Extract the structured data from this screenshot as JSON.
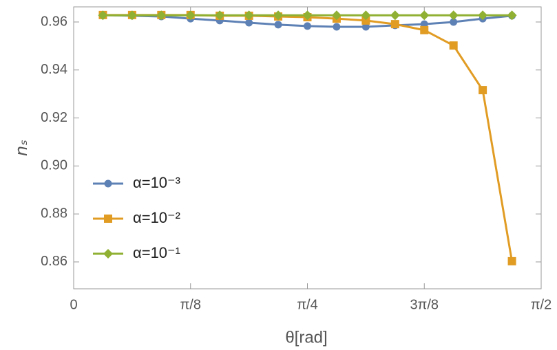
{
  "chart_data": {
    "type": "line",
    "xlabel": "θ[rad]",
    "ylabel": "nₛ",
    "x": [
      0.098175,
      0.19635,
      0.294524,
      0.392699,
      0.490874,
      0.589049,
      0.687223,
      0.785398,
      0.883573,
      0.981748,
      1.079922,
      1.178097,
      1.276272,
      1.374447,
      1.472622
    ],
    "series": [
      {
        "name": "α=10⁻³",
        "color": "#5e81b5",
        "marker": "circle",
        "values": [
          0.9629,
          0.9626,
          0.9623,
          0.9614,
          0.9606,
          0.9597,
          0.9589,
          0.9583,
          0.958,
          0.958,
          0.9586,
          0.9591,
          0.96,
          0.9614,
          0.9626
        ]
      },
      {
        "name": "α=10⁻²",
        "color": "#e19c24",
        "marker": "square",
        "values": [
          0.9629,
          0.9629,
          0.9629,
          0.9629,
          0.9626,
          0.9626,
          0.9623,
          0.962,
          0.9614,
          0.9606,
          0.9591,
          0.9566,
          0.9502,
          0.9316,
          0.8603
        ]
      },
      {
        "name": "α=10⁻¹",
        "color": "#8fb032",
        "marker": "diamond",
        "values": [
          0.9628,
          0.9628,
          0.9628,
          0.9628,
          0.9628,
          0.9628,
          0.9628,
          0.9628,
          0.9628,
          0.9628,
          0.9628,
          0.9628,
          0.9628,
          0.9628,
          0.9628
        ]
      }
    ],
    "xlim": [
      0,
      1.570796
    ],
    "xticks": [
      0,
      {
        "value": 0.392699,
        "label": "π/8"
      },
      {
        "value": 0.785398,
        "label": "π/4"
      },
      {
        "value": 1.178097,
        "label": "3π/8"
      },
      {
        "value": 1.570796,
        "label": "π/2"
      }
    ],
    "ylim": [
      0.8488,
      0.9663
    ],
    "yticks": [
      0.86,
      0.88,
      {
        "value": 0.9,
        "label": "0.90"
      },
      0.92,
      0.94,
      0.96
    ],
    "legend": "left"
  }
}
